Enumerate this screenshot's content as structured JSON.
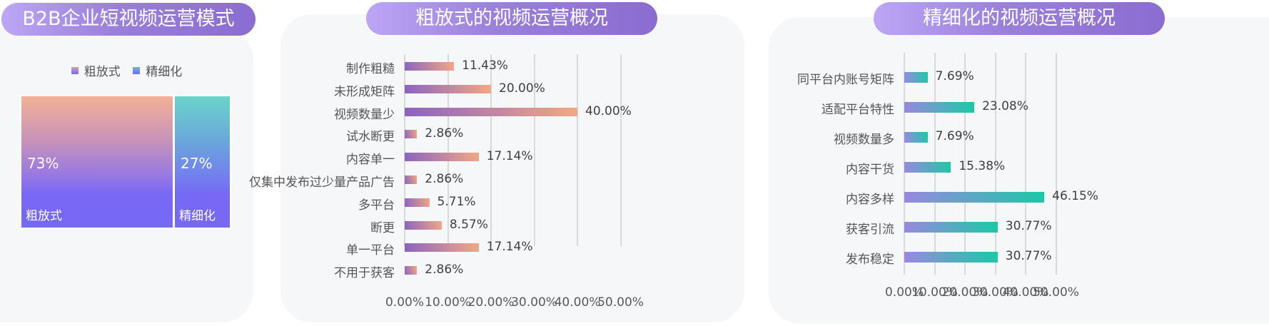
{
  "panels": {
    "left": {
      "title": "B2B企业短视频运营模式"
    },
    "middle": {
      "title": "粗放式的视频运营概况"
    },
    "right": {
      "title": "精细化的视频运营概况"
    }
  },
  "legend": [
    {
      "label": "粗放式"
    },
    {
      "label": "精细化"
    }
  ],
  "treemap": [
    {
      "name": "粗放式",
      "value": "73%"
    },
    {
      "name": "精细化",
      "value": "27%"
    }
  ],
  "colors": {
    "rough_top": "#f4b194",
    "rough_bottom": "#7669f6",
    "fine_top": "#69d4c9",
    "fine_bottom": "#7669f6",
    "rough_bar_start": "#8a63c2",
    "rough_bar_end": "#f4a882",
    "fine_bar_start": "#9a88e0",
    "fine_bar_end": "#1ac9a6",
    "pill": "#9a7fdc",
    "card": "#f6f7f9"
  },
  "chart_data": [
    {
      "type": "pie",
      "subtype": "treemap",
      "title": "B2B企业短视频运营模式",
      "categories": [
        "粗放式",
        "精细化"
      ],
      "values": [
        73,
        27
      ],
      "legend": [
        "粗放式",
        "精细化"
      ],
      "legend_position": "top"
    },
    {
      "type": "bar",
      "orientation": "horizontal",
      "title": "粗放式的视频运营概况",
      "categories": [
        "制作粗糙",
        "未形成矩阵",
        "视频数量少",
        "试水断更",
        "内容单一",
        "仅集中发布过少量产品广告",
        "多平台",
        "断更",
        "单一平台",
        "不用于获客"
      ],
      "values": [
        11.43,
        20.0,
        40.0,
        2.86,
        17.14,
        2.86,
        5.71,
        8.57,
        17.14,
        2.86
      ],
      "value_labels": [
        "11.43%",
        "20.00%",
        "40.00%",
        "2.86%",
        "17.14%",
        "2.86%",
        "5.71%",
        "8.57%",
        "17.14%",
        "2.86%"
      ],
      "xticks": [
        "0.00%",
        "10.00%",
        "20.00%",
        "30.00%",
        "40.00%",
        "50.00%"
      ],
      "xlim": [
        0,
        50
      ],
      "grid": true
    },
    {
      "type": "bar",
      "orientation": "horizontal",
      "title": "精细化的视频运营概况",
      "categories": [
        "同平台内账号矩阵",
        "适配平台特性",
        "视频数量多",
        "内容干货",
        "内容多样",
        "获客引流",
        "发布稳定"
      ],
      "values": [
        7.69,
        23.08,
        7.69,
        15.38,
        46.15,
        30.77,
        30.77
      ],
      "value_labels": [
        "7.69%",
        "23.08%",
        "7.69%",
        "15.38%",
        "46.15%",
        "30.77%",
        "30.77%"
      ],
      "xticks": [
        "0.00%",
        "10.00%",
        "20.00%",
        "30.00%",
        "40.00%",
        "50.00%"
      ],
      "xlim": [
        0,
        50
      ],
      "grid": true
    }
  ]
}
